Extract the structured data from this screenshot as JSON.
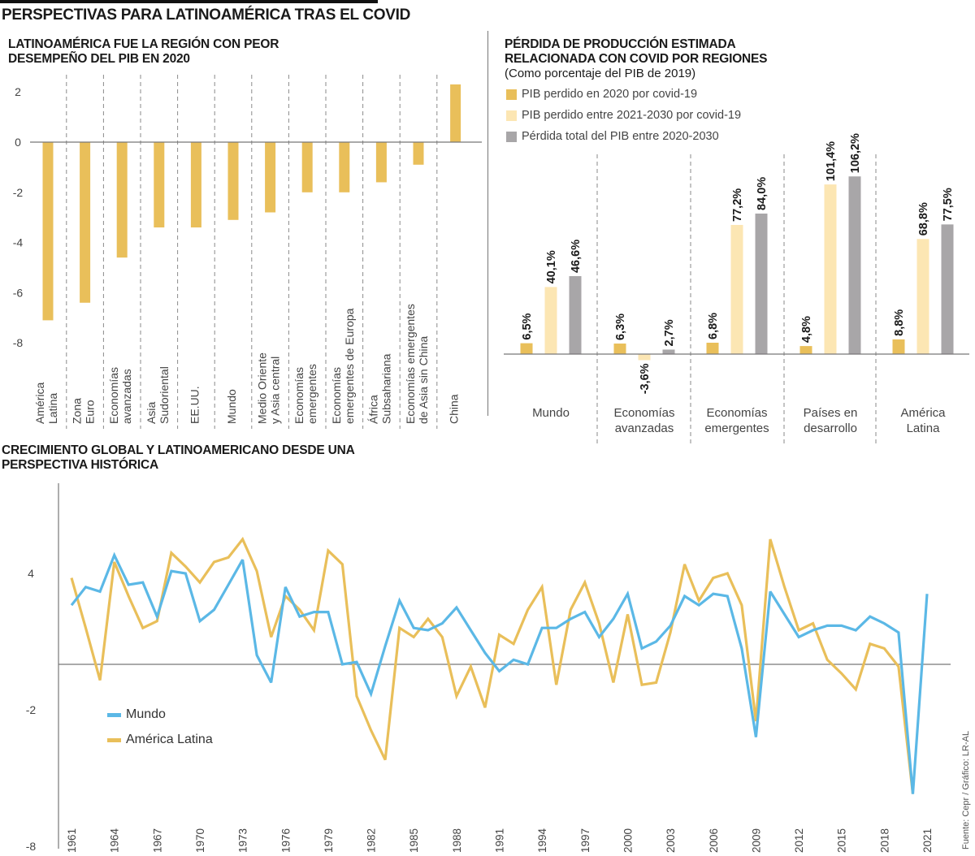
{
  "header": {
    "title": "PERSPECTIVAS PARA LATINOAMÉRICA TRAS EL COVID"
  },
  "colors": {
    "gold": "#E9BF5A",
    "light_gold": "#FCE6B3",
    "gray": "#A8A6A8",
    "blue": "#5BB8E6",
    "axis": "#777777"
  },
  "chart_data": [
    {
      "type": "bar",
      "title": "LATINOAMÉRICA FUE LA REGIÓN CON PEOR DESEMPEÑO DEL PIB EN 2020",
      "xlabel": "",
      "ylabel": "",
      "ylim": [
        -8,
        2
      ],
      "yticks": [
        "2",
        "0",
        "-2",
        "-4",
        "-6",
        "-8"
      ],
      "ytick_values": [
        2,
        0,
        -2,
        -4,
        -6,
        -8
      ],
      "categories": [
        [
          "América",
          "Latina"
        ],
        [
          "Zona",
          "Euro"
        ],
        [
          "Economías",
          "avanzadas"
        ],
        [
          "Asia",
          "Sudoriental"
        ],
        [
          "EE.UU."
        ],
        [
          "Mundo"
        ],
        [
          "Medio Oriente",
          "y Asia central"
        ],
        [
          "Economías",
          "emergentes"
        ],
        [
          "Economías",
          "emergentes de Europa"
        ],
        [
          "África",
          "Subsahariana"
        ],
        [
          "Economías emergentes",
          "de Asia sin China"
        ],
        [
          "China"
        ]
      ],
      "values": [
        -7.1,
        -6.4,
        -4.6,
        -3.4,
        -3.4,
        -3.1,
        -2.8,
        -2.0,
        -2.0,
        -1.6,
        -0.9,
        2.3
      ],
      "grid": "dashed vertical separators",
      "legend": "none"
    },
    {
      "type": "bar",
      "title": "PÉRDIDA DE PRODUCCIÓN ESTIMADA RELACIONADA CON COVID POR REGIONES",
      "subtitle": "(Como porcentaje del PIB de 2019)",
      "categories": [
        [
          "Mundo"
        ],
        [
          "Economías",
          "avanzadas"
        ],
        [
          "Economías",
          "emergentes"
        ],
        [
          "Países en",
          "desarrollo"
        ],
        [
          "América",
          "Latina"
        ]
      ],
      "series": [
        {
          "name": "PIB perdido en 2020 por covid-19",
          "color": "#E9BF5A",
          "values": [
            6.5,
            6.3,
            6.8,
            4.8,
            8.8
          ],
          "labels": [
            "6,5%",
            "6,3%",
            "6,8%",
            "4,8%",
            "8,8%"
          ]
        },
        {
          "name": "PIB perdido entre 2021-2030 por covid-19",
          "color": "#FCE6B3",
          "values": [
            40.1,
            -3.6,
            77.2,
            101.4,
            68.8
          ],
          "labels": [
            "40,1%",
            "-3,6%",
            "77,2%",
            "101,4%",
            "68,8%"
          ]
        },
        {
          "name": "Pérdida total del PIB entre 2020-2030",
          "color": "#A8A6A8",
          "values": [
            46.6,
            2.7,
            84.0,
            106.2,
            77.5
          ],
          "labels": [
            "46,6%",
            "2,7%",
            "84,0%",
            "106,2%",
            "77,5%"
          ]
        }
      ],
      "ylim": [
        -10,
        110
      ],
      "legend": "top-left",
      "grid": "dashed vertical separators"
    },
    {
      "type": "line",
      "title": "CRECIMIENTO GLOBAL Y LATINOAMERICANO DESDE UNA PERSPECTIVA HISTÓRICA",
      "xlabel": "",
      "ylabel": "",
      "ylim": [
        -8,
        8
      ],
      "xlim": [
        1961,
        2021
      ],
      "yticks": [
        "4",
        "-2",
        "-8"
      ],
      "ytick_values": [
        4,
        -2,
        -8
      ],
      "xticks": [
        "1961",
        "1964",
        "1967",
        "1970",
        "1973",
        "1976",
        "1979",
        "1982",
        "1985",
        "1988",
        "1991",
        "1994",
        "1997",
        "2000",
        "2003",
        "2006",
        "2009",
        "2012",
        "2015",
        "2018",
        "2021"
      ],
      "xtick_values": [
        1961,
        1964,
        1967,
        1970,
        1973,
        1976,
        1979,
        1982,
        1985,
        1988,
        1991,
        1994,
        1997,
        2000,
        2003,
        2006,
        2009,
        2012,
        2015,
        2018,
        2021
      ],
      "legend": "bottom-left",
      "series": [
        {
          "name": "Mundo",
          "color": "#5BB8E6",
          "x": [
            1961,
            1962,
            1963,
            1964,
            1965,
            1966,
            1967,
            1968,
            1969,
            1970,
            1971,
            1972,
            1973,
            1974,
            1975,
            1976,
            1977,
            1978,
            1979,
            1980,
            1981,
            1982,
            1983,
            1984,
            1985,
            1986,
            1987,
            1988,
            1989,
            1990,
            1991,
            1992,
            1993,
            1994,
            1995,
            1996,
            1997,
            1998,
            1999,
            2000,
            2001,
            2002,
            2003,
            2004,
            2005,
            2006,
            2007,
            2008,
            2009,
            2010,
            2011,
            2012,
            2013,
            2014,
            2015,
            2016,
            2017,
            2018,
            2019,
            2020,
            2021
          ],
          "values": [
            2.6,
            3.4,
            3.2,
            4.8,
            3.5,
            3.6,
            2.1,
            4.1,
            4.0,
            1.9,
            2.4,
            3.5,
            4.6,
            0.4,
            -0.8,
            3.4,
            2.1,
            2.3,
            2.3,
            0.0,
            0.1,
            -1.3,
            0.8,
            2.8,
            1.6,
            1.5,
            1.8,
            2.5,
            1.5,
            0.5,
            -0.3,
            0.2,
            0.0,
            1.6,
            1.6,
            2.0,
            2.3,
            1.2,
            2.0,
            3.1,
            0.7,
            1.0,
            1.7,
            3.0,
            2.6,
            3.1,
            3.0,
            0.7,
            -3.2,
            3.2,
            2.2,
            1.2,
            1.5,
            1.7,
            1.7,
            1.5,
            2.1,
            1.8,
            1.4,
            -5.7,
            3.1
          ]
        },
        {
          "name": "América Latina",
          "color": "#E9BF5A",
          "x": [
            1961,
            1962,
            1963,
            1964,
            1965,
            1966,
            1967,
            1968,
            1969,
            1970,
            1971,
            1972,
            1973,
            1974,
            1975,
            1976,
            1977,
            1978,
            1979,
            1980,
            1981,
            1982,
            1983,
            1984,
            1985,
            1986,
            1987,
            1988,
            1989,
            1990,
            1991,
            1992,
            1993,
            1994,
            1995,
            1996,
            1997,
            1998,
            1999,
            2000,
            2001,
            2002,
            2003,
            2004,
            2005,
            2006,
            2007,
            2008,
            2009,
            2010,
            2011,
            2012,
            2013,
            2014,
            2015,
            2016,
            2017,
            2018,
            2019,
            2020
          ],
          "values": [
            3.8,
            1.6,
            -0.7,
            4.5,
            3.0,
            1.6,
            1.9,
            4.9,
            4.3,
            3.6,
            4.5,
            4.7,
            5.5,
            4.1,
            1.2,
            3.0,
            2.4,
            1.5,
            5.0,
            4.4,
            -1.4,
            -2.9,
            -4.2,
            1.6,
            1.2,
            2.0,
            1.2,
            -1.4,
            -0.1,
            -1.9,
            1.3,
            0.9,
            2.4,
            3.4,
            -0.9,
            2.4,
            3.6,
            1.8,
            -0.8,
            2.2,
            -0.9,
            -0.8,
            1.4,
            4.4,
            2.8,
            3.8,
            4.0,
            2.6,
            -2.5,
            5.5,
            3.4,
            1.5,
            1.8,
            0.2,
            -0.4,
            -1.1,
            0.9,
            0.7,
            -0.1,
            -5.7
          ]
        }
      ]
    }
  ],
  "source": "Fuente: Cepr / Gráfico: LR-AL"
}
